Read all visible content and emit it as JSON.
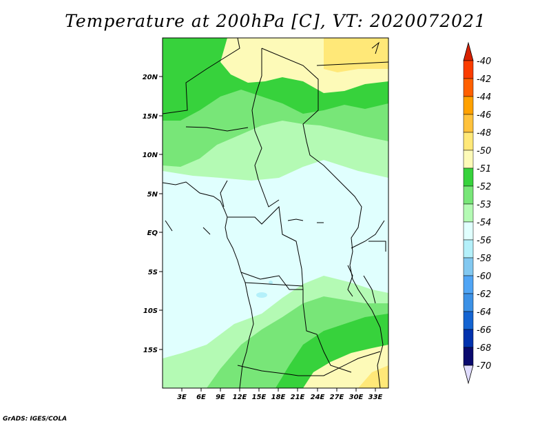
{
  "title": "Temperature at 200hPa [C], VT: 2020072021",
  "credit": "GrADS: IGES/COLA",
  "map": {
    "projection": "lat-lon",
    "lon_range": [
      0,
      35
    ],
    "lat_range": [
      -20,
      25
    ],
    "lon_ticks": [
      "3E",
      "6E",
      "9E",
      "12E",
      "15E",
      "18E",
      "21E",
      "24E",
      "27E",
      "30E",
      "33E"
    ],
    "lat_ticks": [
      "20N",
      "15N",
      "10N",
      "5N",
      "EQ",
      "5S",
      "10S",
      "15S"
    ],
    "background_color": "#e0fffe"
  },
  "colorbar": {
    "levels": [
      "-40",
      "-42",
      "-44",
      "-46",
      "-48",
      "-50",
      "-51",
      "-52",
      "-53",
      "-54",
      "-56",
      "-58",
      "-60",
      "-62",
      "-64",
      "-66",
      "-68",
      "-70"
    ],
    "colors": [
      "#d82100",
      "#fa3c00",
      "#ff6000",
      "#ffa100",
      "#ffc23c",
      "#ffe878",
      "#fdfab8",
      "#37d23c",
      "#78e678",
      "#b4fab4",
      "#e0fffe",
      "#b4f0fa",
      "#82c8f0",
      "#50a5f5",
      "#3c91e6",
      "#1464d2",
      "#0232ae",
      "#0a0a6e",
      "#e0dcff"
    ]
  }
}
